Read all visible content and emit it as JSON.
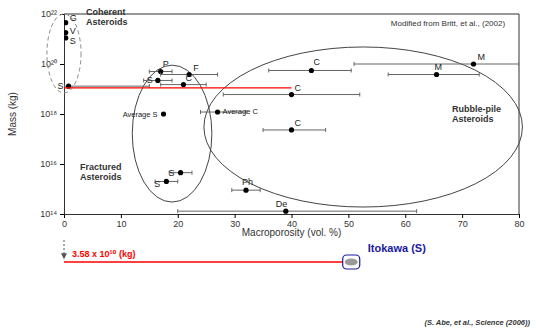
{
  "chart_data": {
    "type": "scatter",
    "source": "Modified from Britt, et al., (2002)",
    "x_label": "Macroporosity (vol. %)",
    "y_label": "Mass (kg)",
    "log": "y",
    "xlim": [
      0,
      80
    ],
    "ylim": [
      100000000000000.0,
      1e+22
    ],
    "xticks": [
      0,
      10,
      20,
      30,
      40,
      50,
      60,
      70,
      80
    ],
    "yticks": [
      {
        "value": 100000000000000.0,
        "label": "10¹⁴"
      },
      {
        "value": 1e+16,
        "label": "10¹⁶"
      },
      {
        "value": 1e+18,
        "label": "10¹⁸"
      },
      {
        "value": 1e+20,
        "label": "10²⁰"
      },
      {
        "value": 1e+22,
        "label": "10²²"
      }
    ],
    "series": [
      {
        "type": "scatter",
        "color": "#000000",
        "marker": "circle",
        "labels": [
          "G",
          "V",
          "S",
          "S",
          "P",
          "F",
          "S",
          "C",
          "C",
          "M",
          "M",
          "C",
          "Average S",
          "Average C",
          "C",
          "S",
          "S",
          "Ph",
          "De"
        ],
        "x": [
          0.3,
          0.3,
          0.3,
          0.8,
          17,
          22,
          16.5,
          21,
          43.5,
          72,
          65.5,
          40,
          17.5,
          27,
          40,
          20.5,
          18,
          32,
          39
        ],
        "values": [
          4.5e+21,
          1.8e+21,
          1.1e+21,
          1.3e+19,
          5e+19,
          3.8e+19,
          2.2e+19,
          1.5e+19,
          5.5e+19,
          1e+20,
          3.8e+19,
          6e+18,
          1e+18,
          1.2e+18,
          2.3e+17,
          4500000000000000.0,
          2000000000000000.0,
          900000000000000.0,
          130000000000000.0
        ],
        "xerr_minus": [
          null,
          null,
          null,
          0.8,
          2,
          5,
          2.5,
          4,
          7.5,
          21,
          8.5,
          12,
          null,
          3,
          5,
          2,
          2,
          2.5,
          19
        ],
        "xerr_plus": [
          null,
          null,
          null,
          14.2,
          2,
          5,
          2.5,
          4,
          7,
          8,
          7.5,
          12,
          null,
          5,
          6,
          2,
          2,
          2.5,
          23
        ]
      },
      {
        "type": "line",
        "color": "#ff0000",
        "line_style": "solid",
        "x": [
          0,
          40
        ],
        "values": [
          1.1e+19,
          1.1e+19
        ]
      }
    ],
    "regions": [
      {
        "label": "Coherent Asteroids",
        "cx": 0,
        "rx": 3,
        "ylo": 7e+18,
        "yhi": 1e+22,
        "color": "#888888",
        "line_style": "dashed"
      },
      {
        "label": "Fractured Asteroids",
        "cx": 19,
        "rx": 7,
        "ylo": 300000000000000.0,
        "yhi": 9e+19,
        "color": "#444444",
        "line_style": "solid"
      },
      {
        "label": "Rubble-pile Asteroids",
        "cx": 52.6,
        "rx": 28,
        "ylo": 190000000000000.0,
        "yhi": 4.8e+20,
        "color": "#444444",
        "line_style": "solid"
      }
    ],
    "itokawa": {
      "mass_label": "3.58 x 10¹⁰ (kg)",
      "mass_color": "#ff0000",
      "x": 0,
      "name": "Itokawa (S)",
      "name_color": "#1a1aa0",
      "x_range": [
        49,
        52
      ]
    },
    "citation": "(S. Abe, et al., Science (2006))"
  }
}
